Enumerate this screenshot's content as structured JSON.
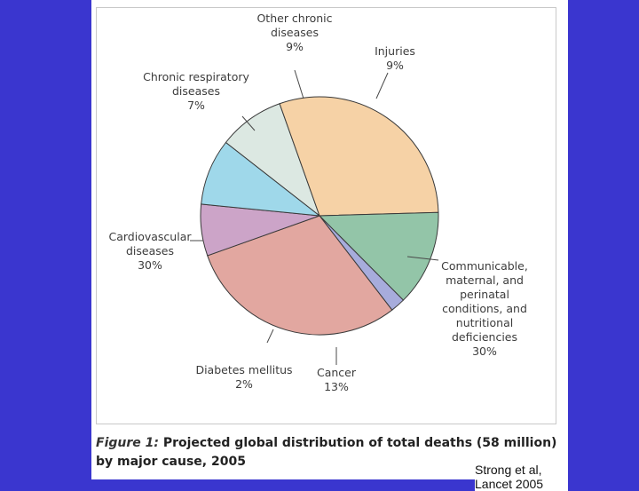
{
  "caption": {
    "figure_label": "Figure 1:",
    "text": "Projected global distribution of total deaths (58 million) by major cause, 2005"
  },
  "source_note": "Strong et al, Lancet 2005",
  "chart_data": {
    "type": "pie",
    "title": "",
    "unit": "%",
    "slices": [
      {
        "label_lines": [
          "Injuries"
        ],
        "value": 9,
        "color": "#dce8e2"
      },
      {
        "label_lines": [
          "Communicable,",
          "maternal, and",
          "perinatal",
          "conditions, and",
          "nutritional",
          "deficiencies"
        ],
        "value": 30,
        "color": "#f6d2a6"
      },
      {
        "label_lines": [
          "Cancer"
        ],
        "value": 13,
        "color": "#93c5a8"
      },
      {
        "label_lines": [
          "Diabetes mellitus"
        ],
        "value": 2,
        "color": "#a7acdc"
      },
      {
        "label_lines": [
          "Cardiovascular",
          "diseases"
        ],
        "value": 30,
        "color": "#e2a7a0"
      },
      {
        "label_lines": [
          "Chronic respiratory",
          "diseases"
        ],
        "value": 7,
        "color": "#cca4c8"
      },
      {
        "label_lines": [
          "Other chronic",
          "diseases"
        ],
        "value": 9,
        "color": "#9fd8ea"
      }
    ]
  }
}
